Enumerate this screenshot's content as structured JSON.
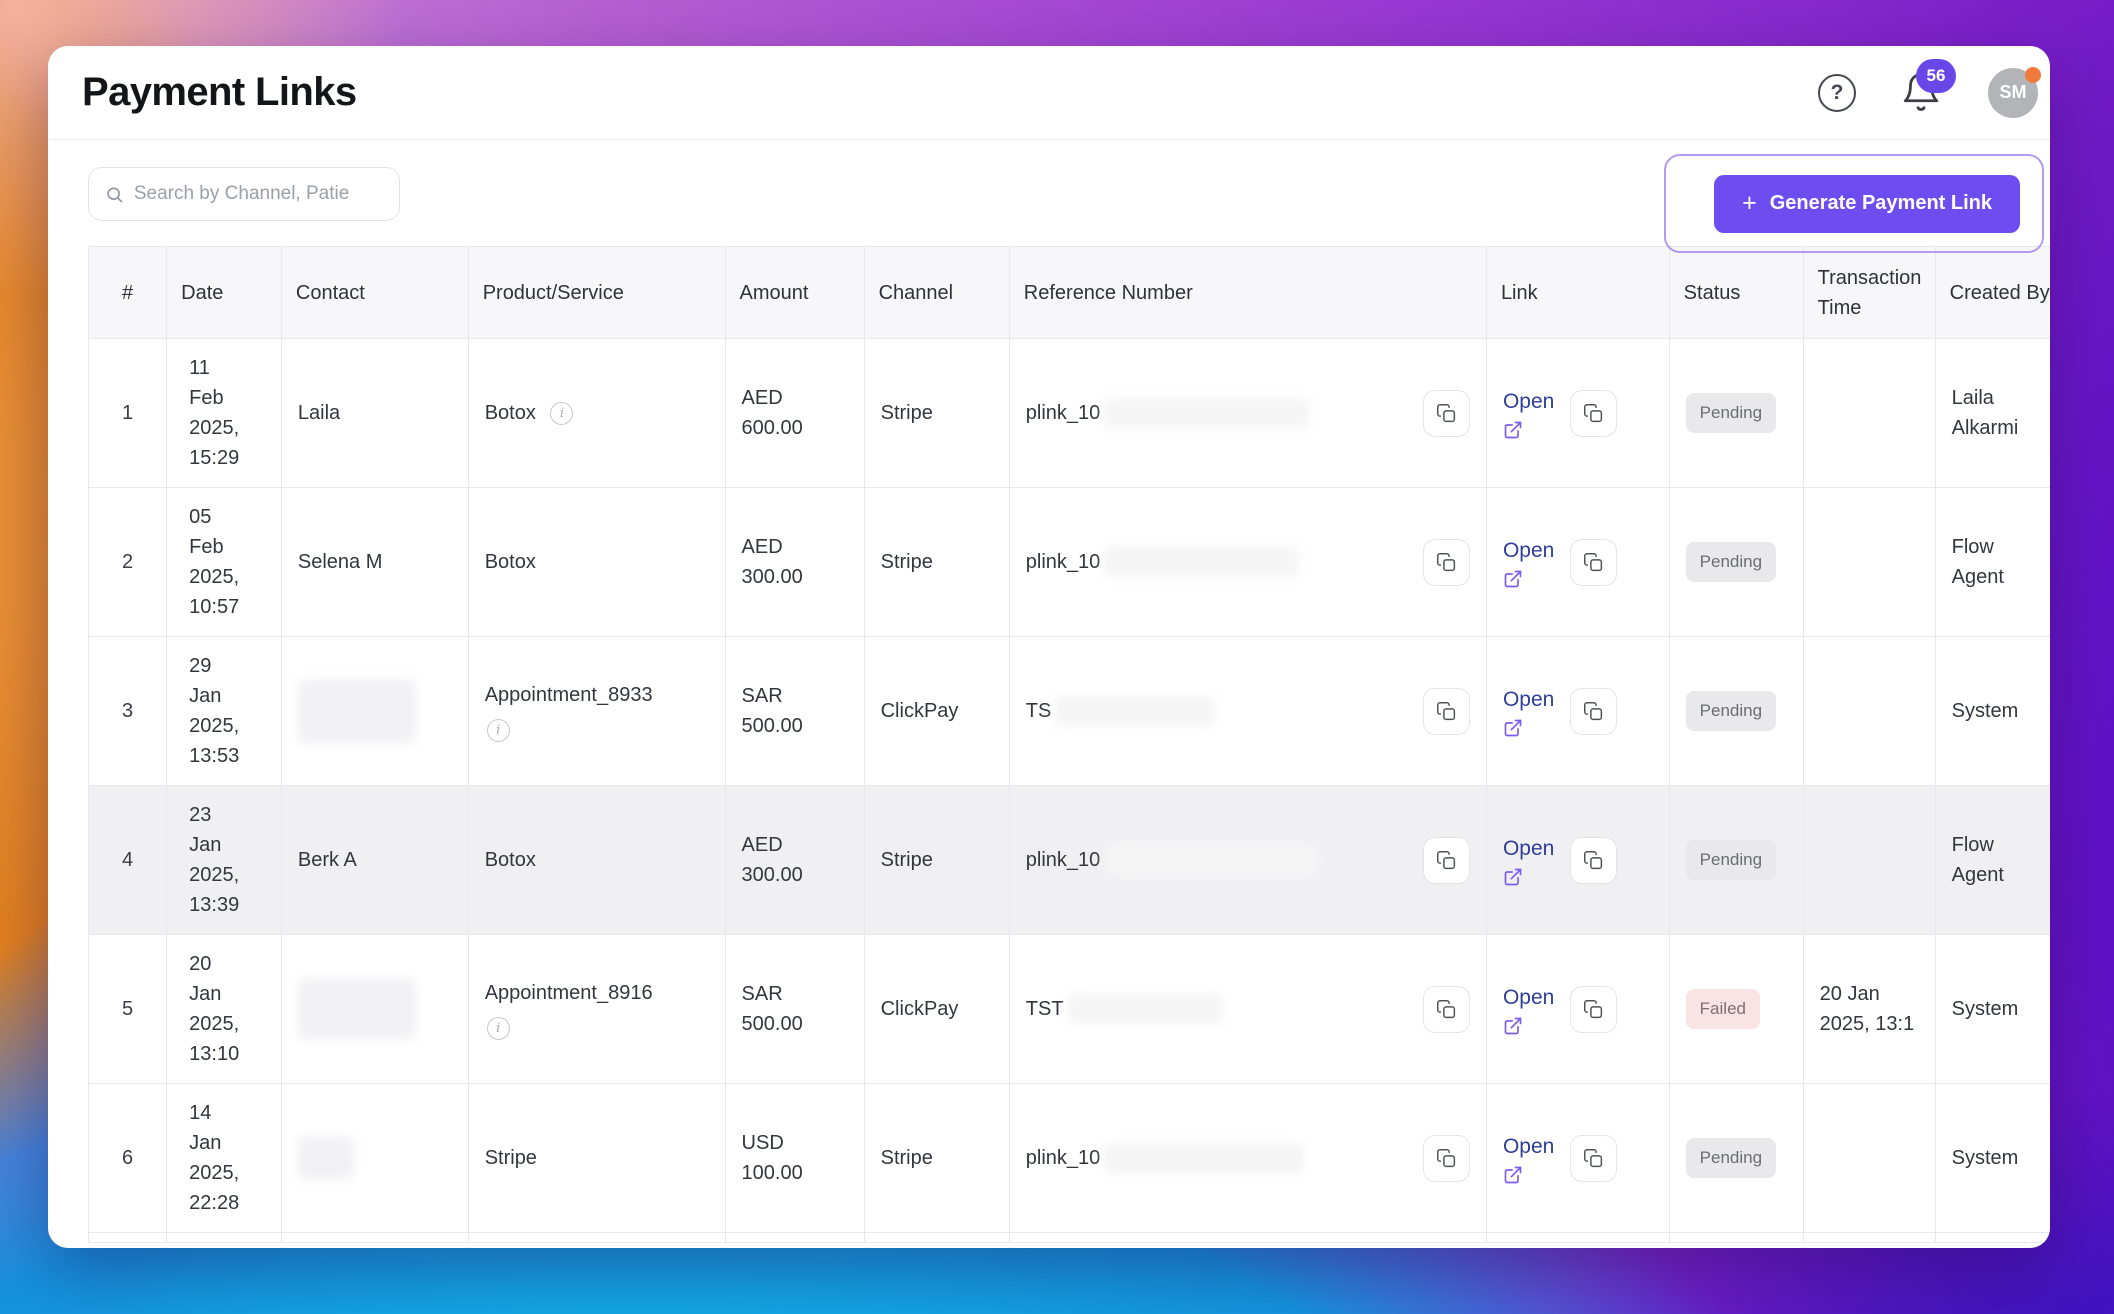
{
  "header": {
    "title": "Payment Links",
    "help_glyph": "?",
    "notification_count": "56",
    "avatar_initials": "SM"
  },
  "toolbar": {
    "search_placeholder": "Search by Channel, Patie",
    "generate_button_icon": "+",
    "generate_button_label": "Generate Payment Link"
  },
  "table": {
    "columns": [
      "#",
      "Date",
      "Contact",
      "Product/Service",
      "Amount",
      "Channel",
      "Reference Number",
      "Link",
      "Status",
      "Transaction\nTime",
      "Created By"
    ],
    "link_label": "Open",
    "info_glyph": "i",
    "rows": [
      {
        "num": "1",
        "date": "11 Feb 2025, 15:29",
        "contact": "Laila",
        "contact_redacted": false,
        "product": "Botox",
        "product_info": true,
        "info_below": false,
        "amount": "AED 600.00",
        "channel": "Stripe",
        "reference_prefix": "plink_10",
        "reference_redact_width": 205,
        "status": "Pending",
        "status_type": "pending",
        "transaction_time": "",
        "created_by": "Laila Alkarmi",
        "highlighted": false
      },
      {
        "num": "2",
        "date": "05 Feb 2025, 10:57",
        "contact": "Selena M",
        "contact_redacted": false,
        "product": "Botox",
        "product_info": false,
        "info_below": false,
        "amount": "AED 300.00",
        "channel": "Stripe",
        "reference_prefix": "plink_10",
        "reference_redact_width": 195,
        "status": "Pending",
        "status_type": "pending",
        "transaction_time": "",
        "created_by": "Flow Agent",
        "highlighted": false
      },
      {
        "num": "3",
        "date": "29 Jan 2025, 13:53",
        "contact": "",
        "contact_redacted": true,
        "contact_redact_width": 118,
        "contact_redact_height": 64,
        "product": "Appointment_8933",
        "product_info": true,
        "info_below": true,
        "amount": "SAR 500.00",
        "channel": "ClickPay",
        "reference_prefix": "TS",
        "reference_redact_width": 160,
        "status": "Pending",
        "status_type": "pending",
        "transaction_time": "",
        "created_by": "System",
        "highlighted": false
      },
      {
        "num": "4",
        "date": "23 Jan 2025, 13:39",
        "contact": "Berk A",
        "contact_redacted": false,
        "product": "Botox",
        "product_info": false,
        "info_below": false,
        "amount": "AED 300.00",
        "channel": "Stripe",
        "reference_prefix": "plink_10",
        "reference_redact_width": 215,
        "status": "Pending",
        "status_type": "pending",
        "transaction_time": "",
        "created_by": "Flow Agent",
        "highlighted": true
      },
      {
        "num": "5",
        "date": "20 Jan 2025, 13:10",
        "contact": "",
        "contact_redacted": true,
        "contact_redact_width": 118,
        "contact_redact_height": 60,
        "product": "Appointment_8916",
        "product_info": true,
        "info_below": true,
        "amount": "SAR 500.00",
        "channel": "ClickPay",
        "reference_prefix": "TST",
        "reference_redact_width": 155,
        "status": "Failed",
        "status_type": "failed",
        "transaction_time": "20 Jan 2025, 13:1",
        "created_by": "System",
        "highlighted": false
      },
      {
        "num": "6",
        "date": "14 Jan 2025, 22:28",
        "contact": "",
        "contact_redacted": true,
        "contact_redact_width": 56,
        "contact_redact_height": 42,
        "product": "Stripe",
        "product_info": false,
        "info_below": false,
        "amount": "USD 100.00",
        "channel": "Stripe",
        "reference_prefix": "plink_10",
        "reference_redact_width": 200,
        "status": "Pending",
        "status_type": "pending",
        "transaction_time": "",
        "created_by": "System",
        "highlighted": false
      }
    ]
  },
  "colors": {
    "accent": "#6d4cf0",
    "highlight_ring": "#b49bf0",
    "open_link": "#2e3e99",
    "external_icon": "#7a5cf5",
    "pending_bg": "#e9e9eb",
    "pending_text": "#6b6d72",
    "failed_bg": "#f9e3e5",
    "failed_text": "#7c7074",
    "notification_badge_bg": "#6847e8",
    "avatar_bg": "#b2b4b8",
    "avatar_dot": "#f2793e"
  }
}
